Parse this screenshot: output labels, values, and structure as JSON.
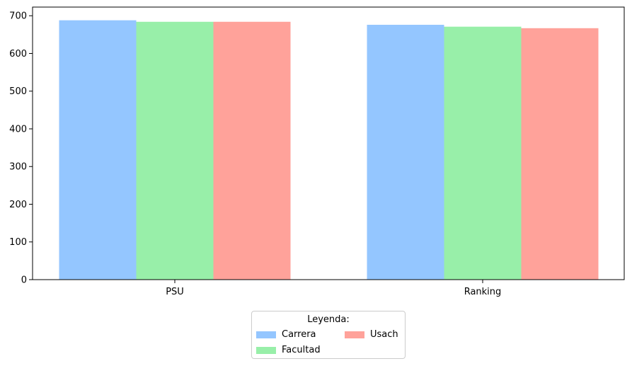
{
  "chart_data": {
    "type": "bar",
    "categories": [
      "PSU",
      "Ranking"
    ],
    "series": [
      {
        "name": "Carrera",
        "values": [
          688,
          676
        ],
        "color": "#94c6ff"
      },
      {
        "name": "Facultad",
        "values": [
          684,
          671
        ],
        "color": "#98efa9"
      },
      {
        "name": "Usach",
        "values": [
          684,
          667
        ],
        "color": "#ffa29a"
      }
    ],
    "yticks": [
      0,
      100,
      200,
      300,
      400,
      500,
      600,
      700
    ],
    "ylim": [
      0,
      723
    ],
    "legend": {
      "title": "Leyenda:",
      "placement": "bottom-center"
    }
  }
}
